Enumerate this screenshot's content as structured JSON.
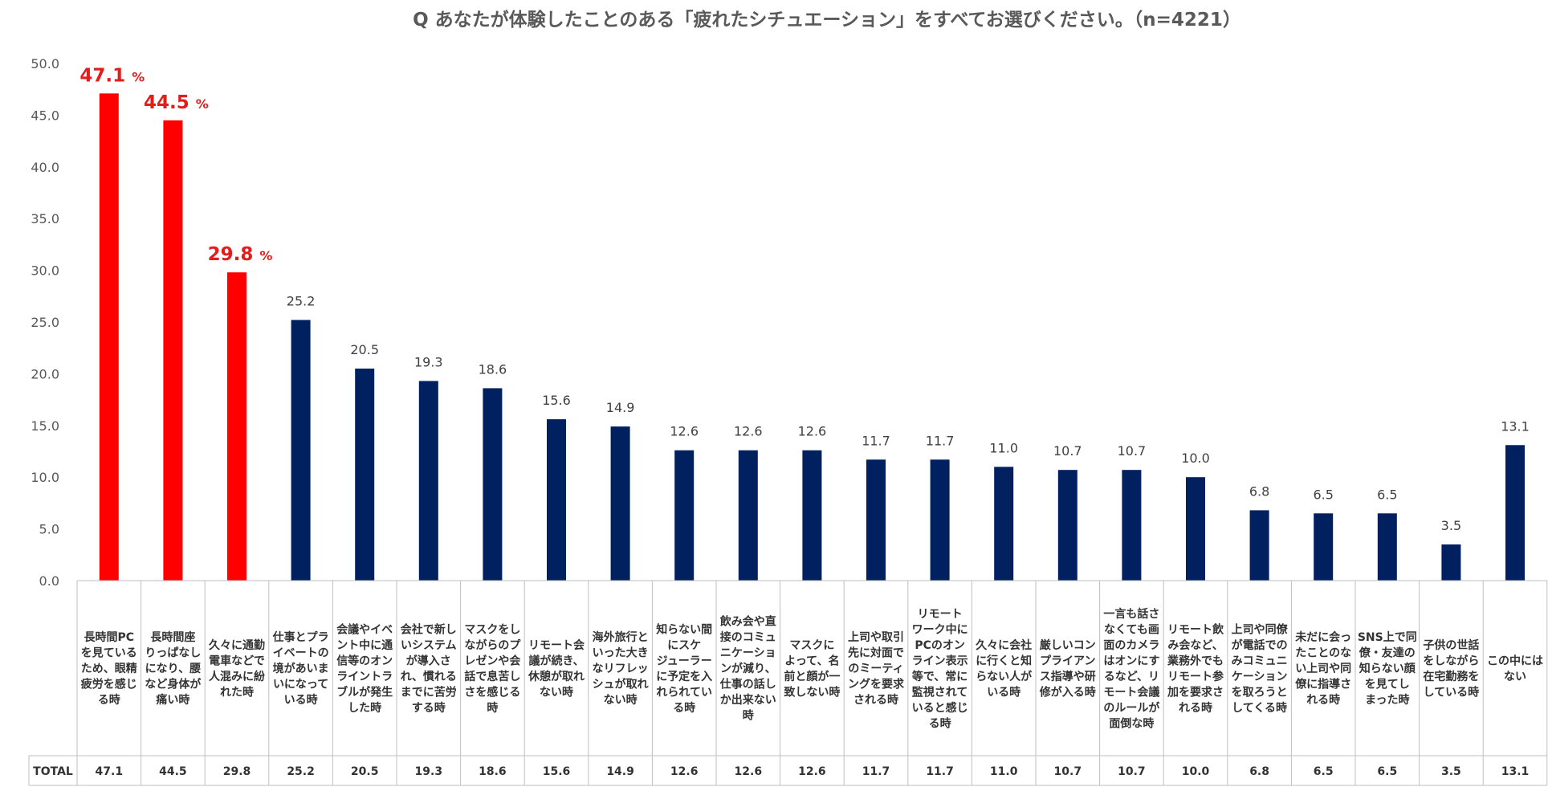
{
  "chart_data": {
    "type": "bar",
    "title": "Q あなたが体験したことのある「疲れたシチュエーション」をすべてお選びください。（n=4221）",
    "unit": "%",
    "ylim": [
      0,
      50
    ],
    "yticks": [
      "0.0",
      "5.0",
      "10.0",
      "15.0",
      "20.0",
      "25.0",
      "30.0",
      "35.0",
      "40.0",
      "45.0",
      "50.0"
    ],
    "table_row_label": "TOTAL",
    "highlight_color": "#ff0000",
    "bar_color": "#002060",
    "highlight_count": 3,
    "categories": [
      [
        "長時間PC",
        "を見ている",
        "ため、眼精",
        "疲労を感じ",
        "る時"
      ],
      [
        "長時間座",
        "りっぱなし",
        "になり、腰",
        "など身体が",
        "痛い時"
      ],
      [
        "久々に通勤",
        "電車などで",
        "人混みに紛",
        "れた時"
      ],
      [
        "仕事とプラ",
        "イベートの",
        "境があいま",
        "いになって",
        "いる時"
      ],
      [
        "会議やイベ",
        "ント中に通",
        "信等のオン",
        "ライントラ",
        "ブルが発生",
        "した時"
      ],
      [
        "会社で新し",
        "いシステム",
        "が導入さ",
        "れ、慣れる",
        "までに苦労",
        "する時"
      ],
      [
        "マスクをし",
        "ながらのプ",
        "レゼンや会",
        "話で息苦し",
        "さを感じる",
        "時"
      ],
      [
        "リモート会",
        "議が続き、",
        "休憩が取れ",
        "ない時"
      ],
      [
        "海外旅行と",
        "いった大き",
        "なリフレッ",
        "シュが取れ",
        "ない時"
      ],
      [
        "知らない間",
        "にスケ",
        "ジューラー",
        "に予定を入",
        "れられてい",
        "る時"
      ],
      [
        "飲み会や直",
        "接のコミュ",
        "ニケーショ",
        "ンが減り、",
        "仕事の話し",
        "か出来ない",
        "時"
      ],
      [
        "マスクに",
        "よって、名",
        "前と顔が一",
        "致しない時"
      ],
      [
        "上司や取引",
        "先に対面で",
        "のミーティ",
        "ングを要求",
        "される時"
      ],
      [
        "リモート",
        "ワーク中に",
        "PCのオン",
        "ライン表示",
        "等で、常に",
        "監視されて",
        "いると感じ",
        "る時"
      ],
      [
        "久々に会社",
        "に行くと知",
        "らない人が",
        "いる時"
      ],
      [
        "厳しいコン",
        "プライアン",
        "ス指導や研",
        "修が入る時"
      ],
      [
        "一言も話さ",
        "なくても画",
        "面のカメラ",
        "はオンにす",
        "るなど、リ",
        "モート会議",
        "のルールが",
        "面倒な時"
      ],
      [
        "リモート飲",
        "み会など、",
        "業務外でも",
        "リモート参",
        "加を要求さ",
        "れる時"
      ],
      [
        "上司や同僚",
        "が電話での",
        "みコミュニ",
        "ケーション",
        "を取ろうと",
        "してくる時"
      ],
      [
        "未だに会っ",
        "たことのな",
        "い上司や同",
        "僚に指導さ",
        "れる時"
      ],
      [
        "SNS上で同",
        "僚・友達の",
        "知らない顔",
        "を見てし",
        "まった時"
      ],
      [
        "子供の世話",
        "をしながら",
        "在宅勤務を",
        "している時"
      ],
      [
        "この中には",
        "ない"
      ]
    ],
    "values": [
      47.1,
      44.5,
      29.8,
      25.2,
      20.5,
      19.3,
      18.6,
      15.6,
      14.9,
      12.6,
      12.6,
      12.6,
      11.7,
      11.7,
      11.0,
      10.7,
      10.7,
      10.0,
      6.8,
      6.5,
      6.5,
      3.5,
      13.1
    ],
    "value_labels": [
      "47.1",
      "44.5",
      "29.8",
      "25.2",
      "20.5",
      "19.3",
      "18.6",
      "15.6",
      "14.9",
      "12.6",
      "12.6",
      "12.6",
      "11.7",
      "11.7",
      "11.0",
      "10.7",
      "10.7",
      "10.0",
      "6.8",
      "6.5",
      "6.5",
      "3.5",
      "13.1"
    ]
  }
}
